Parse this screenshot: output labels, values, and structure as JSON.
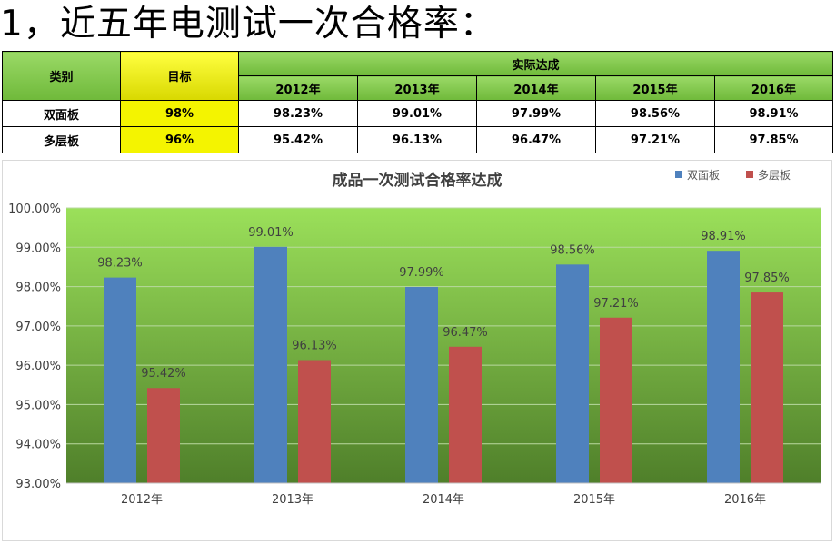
{
  "page": {
    "title": "1，近五年电测试一次合格率："
  },
  "table": {
    "header_category": "类别",
    "header_target": "目标",
    "header_actual": "实际达成",
    "years": [
      "2012年",
      "2013年",
      "2014年",
      "2015年",
      "2016年"
    ],
    "rows": [
      {
        "name": "双面板",
        "target": "98%",
        "values": [
          "98.23%",
          "99.01%",
          "97.99%",
          "98.56%",
          "98.91%"
        ]
      },
      {
        "name": "多层板",
        "target": "96%",
        "values": [
          "95.42%",
          "96.13%",
          "96.47%",
          "97.21%",
          "97.85%"
        ]
      }
    ]
  },
  "chart_data": {
    "type": "bar",
    "title": "成品一次测试合格率达成",
    "categories": [
      "2012年",
      "2013年",
      "2014年",
      "2015年",
      "2016年"
    ],
    "series": [
      {
        "name": "双面板",
        "values": [
          98.23,
          99.01,
          97.99,
          98.56,
          98.91
        ],
        "labels": [
          "98.23%",
          "99.01%",
          "97.99%",
          "98.56%",
          "98.91%"
        ],
        "color": "#4f81bd"
      },
      {
        "name": "多层板",
        "values": [
          95.42,
          96.13,
          96.47,
          97.21,
          97.85
        ],
        "labels": [
          "95.42%",
          "96.13%",
          "96.47%",
          "97.21%",
          "97.85%"
        ],
        "color": "#c0504d"
      }
    ],
    "ylim": [
      93,
      100
    ],
    "yticks": [
      "93.00%",
      "94.00%",
      "95.00%",
      "96.00%",
      "97.00%",
      "98.00%",
      "99.00%",
      "100.00%"
    ],
    "grid": true,
    "legend": "top-right",
    "plot_background": [
      "#9be05a",
      "#4f7f2a"
    ]
  }
}
